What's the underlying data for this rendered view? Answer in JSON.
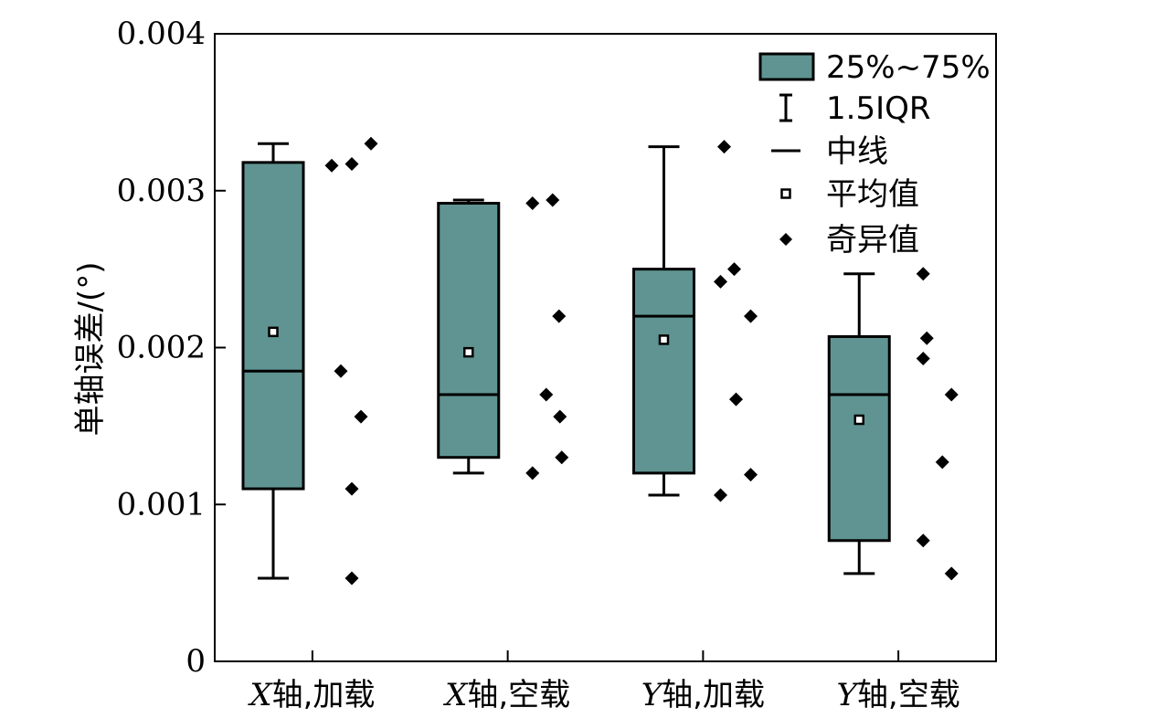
{
  "chart_data": {
    "type": "box",
    "ylabel": "单轴误差/(°)",
    "xlabel": "",
    "ylim": [
      0,
      0.004
    ],
    "yticks": [
      "0",
      "0.001",
      "0.002",
      "0.003",
      "0.004"
    ],
    "ytick_values": [
      0,
      0.001,
      0.002,
      0.003,
      0.004
    ],
    "categories": [
      {
        "italic": "X",
        "label": "轴,加载"
      },
      {
        "italic": "X",
        "label": "轴,空载"
      },
      {
        "italic": "Y",
        "label": "轴,加载"
      },
      {
        "italic": "Y",
        "label": "轴,空载"
      }
    ],
    "box_color": "#5f9492",
    "boxes": [
      {
        "whisker_low": 0.00053,
        "q1": 0.0011,
        "median": 0.00185,
        "q3": 0.00318,
        "whisker_high": 0.0033,
        "mean": 0.0021,
        "outliers": [
          0.00316,
          0.00317,
          0.0033,
          0.00185,
          0.00156,
          0.0011,
          0.00053
        ]
      },
      {
        "whisker_low": 0.0012,
        "q1": 0.0013,
        "median": 0.0017,
        "q3": 0.00292,
        "whisker_high": 0.00294,
        "mean": 0.00197,
        "outliers": [
          0.00292,
          0.00294,
          0.0022,
          0.0017,
          0.00156,
          0.0012,
          0.0013
        ]
      },
      {
        "whisker_low": 0.00106,
        "q1": 0.0012,
        "median": 0.0022,
        "q3": 0.0025,
        "whisker_high": 0.00328,
        "mean": 0.00205,
        "outliers": [
          0.00328,
          0.0025,
          0.00242,
          0.0022,
          0.00167,
          0.00119,
          0.00106
        ]
      },
      {
        "whisker_low": 0.00056,
        "q1": 0.00077,
        "median": 0.0017,
        "q3": 0.00207,
        "whisker_high": 0.00247,
        "mean": 0.00154,
        "outliers": [
          0.00247,
          0.00206,
          0.00193,
          0.0017,
          0.00127,
          0.00077,
          0.00056
        ]
      }
    ],
    "legend": {
      "position": "top-right",
      "items": [
        {
          "kind": "box",
          "label": "25%~75%"
        },
        {
          "kind": "whisker",
          "label": "1.5IQR"
        },
        {
          "kind": "median",
          "label": "中线"
        },
        {
          "kind": "mean",
          "label": "平均值"
        },
        {
          "kind": "outlier",
          "label": "奇异值"
        }
      ]
    }
  }
}
